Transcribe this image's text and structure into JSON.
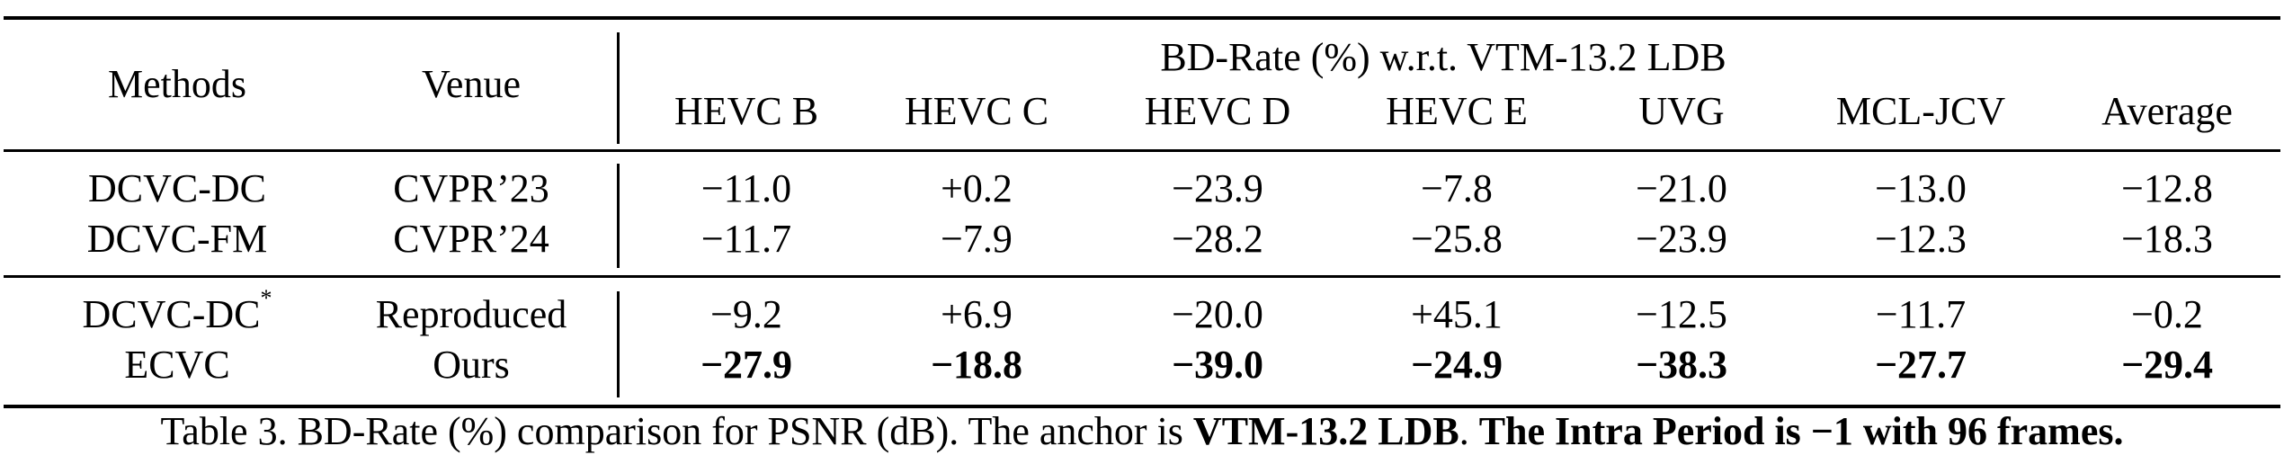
{
  "table": {
    "group_header": "BD-Rate (%) w.r.t. VTM-13.2 LDB",
    "columns": {
      "methods": "Methods",
      "venue": "Venue",
      "datasets": [
        "HEVC B",
        "HEVC C",
        "HEVC D",
        "HEVC E",
        "UVG",
        "MCL-JCV",
        "Average"
      ]
    },
    "groups": [
      {
        "rows": [
          {
            "method": "DCVC-DC",
            "marker": "",
            "venue": "CVPR’23",
            "bold": false,
            "values": [
              "−11.0",
              "+0.2",
              "−23.9",
              "−7.8",
              "−21.0",
              "−13.0",
              "−12.8"
            ]
          },
          {
            "method": "DCVC-FM",
            "marker": "",
            "venue": "CVPR’24",
            "bold": false,
            "values": [
              "−11.7",
              "−7.9",
              "−28.2",
              "−25.8",
              "−23.9",
              "−12.3",
              "−18.3"
            ]
          }
        ]
      },
      {
        "rows": [
          {
            "method": "DCVC-DC",
            "marker": "*",
            "venue": "Reproduced",
            "bold": false,
            "values": [
              "−9.2",
              "+6.9",
              "−20.0",
              "+45.1",
              "−12.5",
              "−11.7",
              "−0.2"
            ]
          },
          {
            "method": "ECVC",
            "marker": "",
            "venue": "Ours",
            "bold": true,
            "values": [
              "−27.9",
              "−18.8",
              "−39.0",
              "−24.9",
              "−38.3",
              "−27.7",
              "−29.4"
            ]
          }
        ]
      }
    ]
  },
  "caption": {
    "prefix": "Table 3. BD-Rate (%) comparison for PSNR (dB). The anchor is ",
    "anchor": "VTM-13.2 LDB",
    "sep": ". ",
    "note": "The Intra Period is −1 with 96 frames."
  }
}
